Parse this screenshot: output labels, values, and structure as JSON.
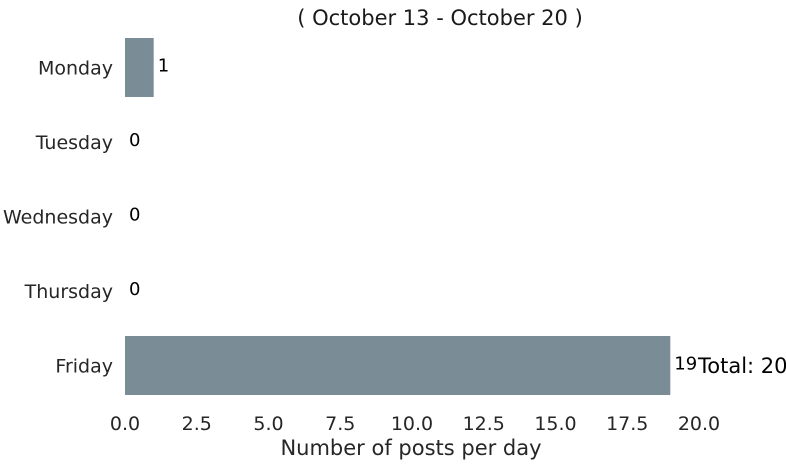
{
  "chart_data": {
    "type": "bar",
    "orientation": "horizontal",
    "title": "( October 13 - October 20 )",
    "xlabel": "Number of posts per day",
    "ylabel": "",
    "categories": [
      "Monday",
      "Tuesday",
      "Wednesday",
      "Thursday",
      "Friday"
    ],
    "values": [
      1,
      0,
      0,
      0,
      19
    ],
    "xlim": [
      0,
      20
    ],
    "xticks": [
      "0.0",
      "2.5",
      "5.0",
      "7.5",
      "10.0",
      "12.5",
      "15.0",
      "17.5",
      "20.0"
    ],
    "total_label": "Total: 20",
    "bar_color": "#7a8d96",
    "grid": false,
    "legend": "none"
  }
}
